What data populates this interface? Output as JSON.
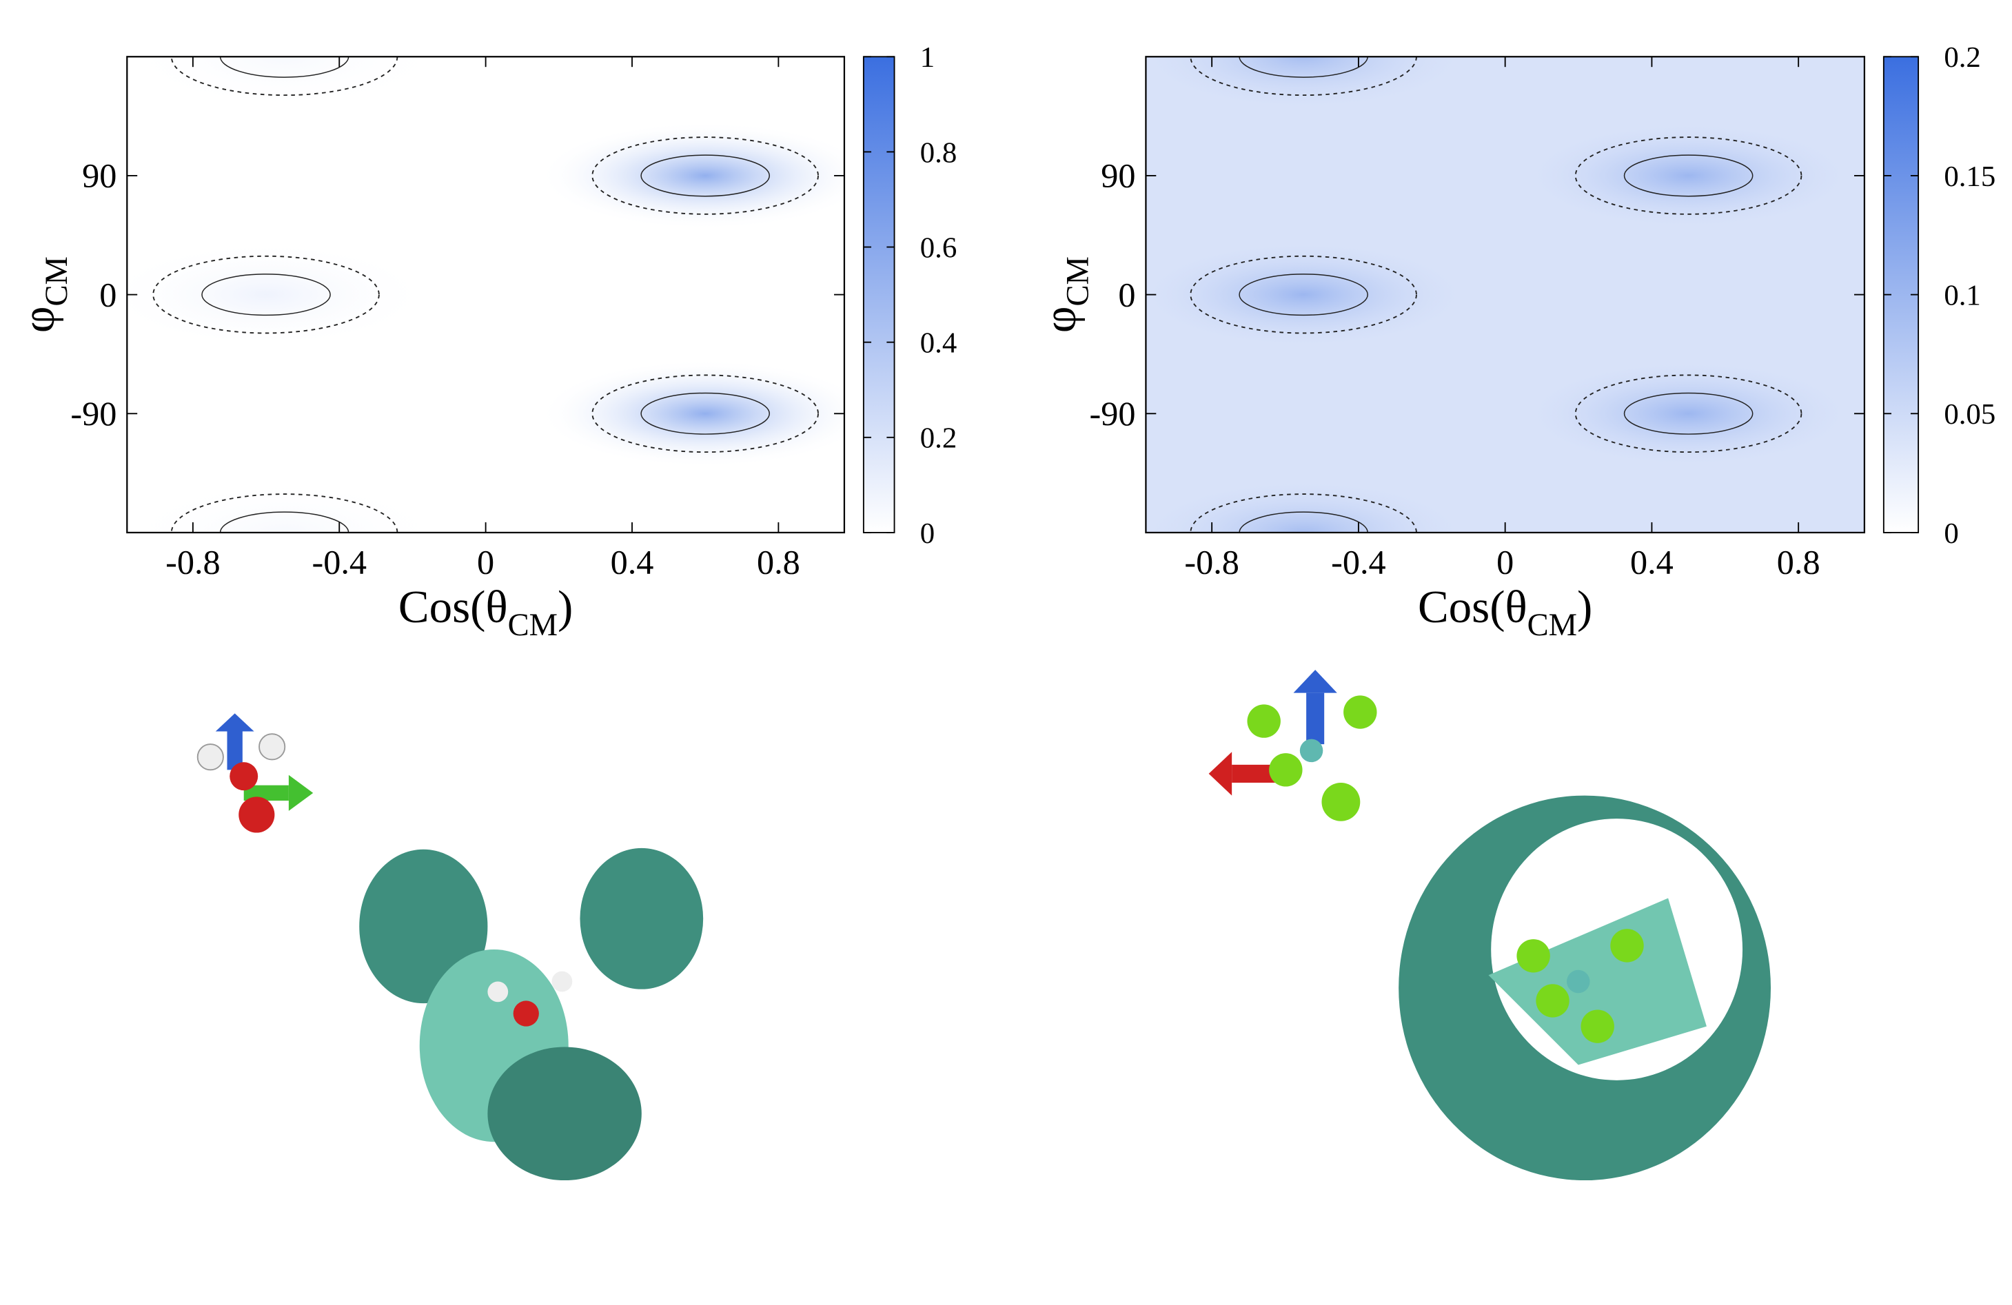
{
  "chart_data": [
    {
      "type": "heatmap",
      "x_label": [
        "Cos(θ",
        "CM",
        ")"
      ],
      "y_label": [
        "φ",
        "CM"
      ],
      "xlim": [
        -0.98,
        0.98
      ],
      "ylim": [
        -180,
        180
      ],
      "xticks": [
        -0.8,
        -0.4,
        0,
        0.4,
        0.8
      ],
      "yticks": [
        -90,
        0,
        90
      ],
      "clim": [
        0,
        1
      ],
      "cticks": [
        0,
        0.2,
        0.4,
        0.6,
        0.8,
        1
      ],
      "color": "#3b6fe0",
      "background_value": 0,
      "peaks": [
        {
          "x": 0.6,
          "y": 90,
          "value": 0.55
        },
        {
          "x": 0.6,
          "y": -90,
          "value": 0.55
        },
        {
          "x": -0.6,
          "y": 0,
          "value": 0.08
        },
        {
          "x": -0.55,
          "y": 180,
          "value": 0.04
        },
        {
          "x": -0.55,
          "y": -180,
          "value": 0.04
        }
      ]
    },
    {
      "type": "heatmap",
      "x_label": [
        "Cos(θ",
        "CM",
        ")"
      ],
      "y_label": [
        "φ",
        "CM"
      ],
      "xlim": [
        -0.98,
        0.98
      ],
      "ylim": [
        -180,
        180
      ],
      "xticks": [
        -0.8,
        -0.4,
        0,
        0.4,
        0.8
      ],
      "yticks": [
        -90,
        0,
        90
      ],
      "clim": [
        0,
        0.2
      ],
      "cticks": [
        0,
        0.05,
        0.1,
        0.15,
        0.2
      ],
      "color": "#3b6fe0",
      "background_value": 0.04,
      "peaks": [
        {
          "x": 0.5,
          "y": 90,
          "value": 0.1
        },
        {
          "x": 0.5,
          "y": -90,
          "value": 0.1
        },
        {
          "x": -0.55,
          "y": 0,
          "value": 0.1
        },
        {
          "x": -0.55,
          "y": 180,
          "value": 0.09
        },
        {
          "x": -0.55,
          "y": -180,
          "value": 0.09
        }
      ]
    }
  ]
}
